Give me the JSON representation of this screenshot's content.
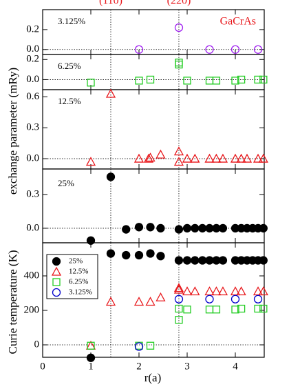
{
  "chart_data": [
    {
      "type": "scatter",
      "title": "GaCrAs",
      "title_color": "#e8161a",
      "annotation": "3.125%",
      "ylabel": "exchange parameter (mRy)",
      "vlines": [
        {
          "value": 1.414,
          "label": "(110)"
        },
        {
          "value": 2.828,
          "label": "(220)"
        }
      ],
      "vline_color": "#e8161a",
      "xlim": [
        0,
        4.6
      ],
      "ylim": [
        -0.05,
        0.4
      ],
      "yticks": [
        {
          "value": 0,
          "label": "0.0"
        },
        {
          "value": 0.2,
          "label": "0.2"
        }
      ],
      "series": [
        {
          "color": "#a020f0",
          "marker": "circle",
          "filled": false,
          "x": [
            2,
            2.828,
            3.464,
            4,
            4.472
          ],
          "values": [
            0,
            0.22,
            0,
            0,
            0
          ]
        }
      ]
    },
    {
      "type": "scatter",
      "annotation": "6.25%",
      "xlim": [
        0,
        4.6
      ],
      "ylim": [
        -0.1,
        0.25
      ],
      "yticks": [
        {
          "value": 0,
          "label": "0.0"
        },
        {
          "value": 0.2,
          "label": "0.2"
        }
      ],
      "series": [
        {
          "color": "#22cc22",
          "marker": "square",
          "filled": false,
          "x": [
            1,
            2,
            2.236,
            2.828,
            2.828,
            3,
            3.464,
            3.606,
            4,
            4.123,
            4.472,
            4.583
          ],
          "values": [
            -0.03,
            -0.01,
            0,
            0.17,
            0.15,
            -0.01,
            -0.01,
            -0.01,
            -0.01,
            0,
            0,
            0
          ]
        }
      ]
    },
    {
      "type": "scatter",
      "annotation": "12.5%",
      "xlim": [
        0,
        4.6
      ],
      "ylim": [
        -0.1,
        0.67
      ],
      "yticks": [
        {
          "value": 0,
          "label": "0.0"
        },
        0.3,
        0.6
      ],
      "series": [
        {
          "color": "#e8161a",
          "marker": "triangle",
          "filled": false,
          "x": [
            1,
            1.414,
            2,
            2.2,
            2.236,
            2.449,
            2.828,
            2.828,
            3,
            3.162,
            3.464,
            3.606,
            3.742,
            4,
            4.123,
            4.243,
            4.472,
            4.583
          ],
          "values": [
            -0.03,
            0.63,
            0,
            0,
            0.01,
            0.04,
            0.07,
            -0.03,
            0,
            0,
            0,
            0,
            0,
            0,
            0,
            0,
            0,
            0
          ]
        }
      ]
    },
    {
      "type": "scatter",
      "annotation": "25%",
      "xlim": [
        0,
        4.6
      ],
      "ylim": [
        -0.13,
        0.53
      ],
      "yticks": [
        {
          "value": 0,
          "label": "0.0"
        },
        0.3
      ],
      "series": [
        {
          "color": "#000000",
          "marker": "circle",
          "filled": true,
          "x": [
            1,
            1.414,
            1.732,
            2,
            2.236,
            2.449,
            2.828,
            3,
            3.162,
            3.317,
            3.464,
            3.606,
            3.742,
            4,
            4.123,
            4.243,
            4.359,
            4.472,
            4.583
          ],
          "values": [
            -0.11,
            0.46,
            -0.01,
            0.01,
            0.01,
            0,
            -0.01,
            0,
            0,
            0,
            0,
            0,
            0,
            0,
            0,
            0,
            0,
            0,
            0
          ]
        }
      ]
    },
    {
      "type": "scatter",
      "ylabel": "Curie temperature (K)",
      "xlabel": "r(a)",
      "legend": "upper left",
      "xlim": [
        0,
        4.6
      ],
      "xticks": [
        0,
        1,
        2,
        3,
        4
      ],
      "ylim": [
        -72,
        592
      ],
      "yticks": [
        0,
        200,
        400
      ],
      "series": [
        {
          "name": "25%",
          "color": "#000000",
          "marker": "circle",
          "filled": true,
          "x": [
            1,
            1.414,
            1.732,
            2,
            2.236,
            2.449,
            2.828,
            3,
            3.162,
            3.317,
            3.464,
            3.606,
            3.742,
            4,
            4.123,
            4.243,
            4.359,
            4.472,
            4.583
          ],
          "values": [
            -75,
            530,
            520,
            520,
            530,
            515,
            490,
            490,
            490,
            490,
            490,
            490,
            490,
            490,
            490,
            490,
            490,
            490,
            490
          ]
        },
        {
          "name": "12.5%",
          "color": "#e8161a",
          "marker": "triangle",
          "filled": false,
          "x": [
            1,
            1.414,
            2,
            2.236,
            2.449,
            2.828,
            2.828,
            3,
            3.162,
            3.464,
            3.606,
            3.742,
            4,
            4.123,
            4.472,
            4.583
          ],
          "values": [
            -5,
            250,
            250,
            250,
            275,
            320,
            330,
            310,
            310,
            310,
            310,
            310,
            310,
            310,
            310,
            310
          ]
        },
        {
          "name": "6.25%",
          "color": "#22cc22",
          "marker": "square",
          "filled": false,
          "x": [
            1,
            2,
            2.236,
            2.828,
            2.828,
            3,
            3.464,
            3.606,
            4,
            4.123,
            4.472,
            4.583
          ],
          "values": [
            -5,
            -5,
            -5,
            210,
            145,
            205,
            205,
            205,
            205,
            210,
            210,
            210
          ]
        },
        {
          "name": "3.125%",
          "color": "#0000cc",
          "marker": "circle",
          "filled": false,
          "x": [
            2,
            2.828,
            3.464,
            4,
            4.472
          ],
          "values": [
            -10,
            265,
            265,
            265,
            265
          ]
        }
      ]
    }
  ]
}
